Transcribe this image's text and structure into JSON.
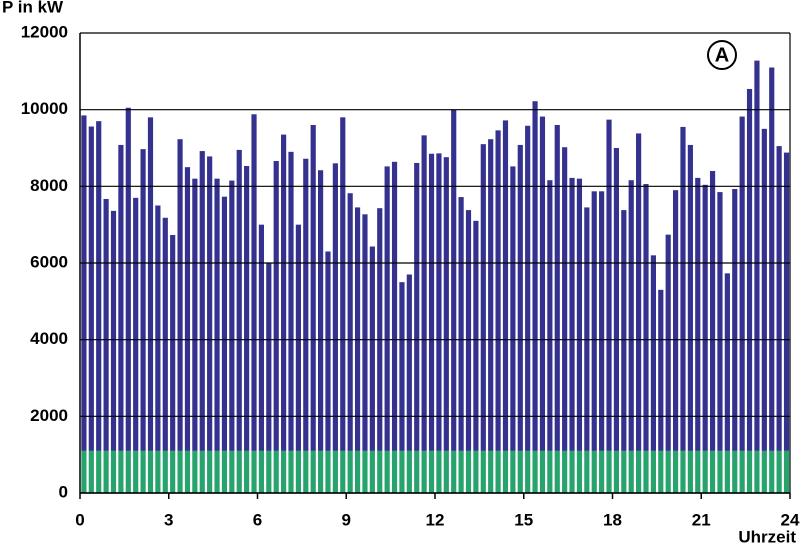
{
  "chart_data": {
    "type": "bar",
    "stacked": true,
    "grid": true,
    "y_label": "P in kW",
    "x_label": "Uhrzeit",
    "annotation": "A",
    "x": [
      0,
      0.25,
      0.5,
      0.75,
      1,
      1.25,
      1.5,
      1.75,
      2,
      2.25,
      2.5,
      2.75,
      3,
      3.25,
      3.5,
      3.75,
      4,
      4.25,
      4.5,
      4.75,
      5,
      5.25,
      5.5,
      5.75,
      6,
      6.25,
      6.5,
      6.75,
      7,
      7.25,
      7.5,
      7.75,
      8,
      8.25,
      8.5,
      8.75,
      9,
      9.25,
      9.5,
      9.75,
      10,
      10.25,
      10.5,
      10.75,
      11,
      11.25,
      11.5,
      11.75,
      12,
      12.25,
      12.5,
      12.75,
      13,
      13.25,
      13.5,
      13.75,
      14,
      14.25,
      14.5,
      14.75,
      15,
      15.25,
      15.5,
      15.75,
      16,
      16.25,
      16.5,
      16.75,
      17,
      17.25,
      17.5,
      17.75,
      18,
      18.25,
      18.5,
      18.75,
      19,
      19.25,
      19.5,
      19.75,
      20,
      20.25,
      20.5,
      20.75,
      21,
      21.25,
      21.5,
      21.75,
      22,
      22.25,
      22.5,
      22.75,
      23,
      23.25,
      23.5,
      23.75
    ],
    "series": [
      {
        "color": "#27a36c",
        "values": [
          1100,
          1100,
          1100,
          1100,
          1100,
          1100,
          1100,
          1100,
          1100,
          1100,
          1100,
          1100,
          1100,
          1100,
          1100,
          1100,
          1100,
          1100,
          1100,
          1100,
          1100,
          1100,
          1100,
          1100,
          1100,
          1100,
          1100,
          1100,
          1100,
          1100,
          1100,
          1100,
          1100,
          1100,
          1100,
          1100,
          1100,
          1100,
          1100,
          1100,
          1100,
          1100,
          1100,
          1100,
          1100,
          1100,
          1100,
          1100,
          1100,
          1100,
          1100,
          1100,
          1100,
          1100,
          1100,
          1100,
          1100,
          1100,
          1100,
          1100,
          1100,
          1100,
          1100,
          1100,
          1100,
          1100,
          1100,
          1100,
          1100,
          1100,
          1100,
          1100,
          1100,
          1100,
          1100,
          1100,
          1100,
          1100,
          1100,
          1100,
          1100,
          1100,
          1100,
          1100,
          1100,
          1100,
          1100,
          1100,
          1100,
          1100,
          1100,
          1100,
          1100,
          1100,
          1100,
          1100
        ]
      },
      {
        "color": "#35318e",
        "values": [
          8750,
          8460,
          8600,
          6570,
          6260,
          7980,
          8950,
          6600,
          7870,
          8700,
          6400,
          6080,
          5630,
          8130,
          7400,
          7100,
          7820,
          7680,
          7100,
          6630,
          7050,
          7850,
          7430,
          8780,
          5900,
          4900,
          7560,
          8250,
          7800,
          5900,
          7620,
          8500,
          7320,
          5200,
          7500,
          8700,
          6720,
          6350,
          6170,
          5330,
          6330,
          7420,
          7540,
          4400,
          4600,
          7510,
          8230,
          7750,
          7760,
          7660,
          8900,
          6620,
          6280,
          6000,
          8000,
          8130,
          8360,
          8620,
          7420,
          7980,
          8480,
          9120,
          8720,
          7060,
          8500,
          7920,
          7120,
          7100,
          6350,
          6770,
          6770,
          8640,
          7900,
          6280,
          7060,
          8280,
          6960,
          5100,
          4200,
          5640,
          6800,
          8450,
          7980,
          7120,
          6940,
          7300,
          6750,
          4630,
          6830,
          8720,
          9440,
          10180,
          8400,
          10000,
          7950,
          7780
        ]
      }
    ],
    "xlim": [
      0,
      24
    ],
    "xticks": [
      0,
      3,
      6,
      9,
      12,
      15,
      18,
      21,
      24
    ],
    "ylim": [
      0,
      12000
    ],
    "yticks": [
      0,
      2000,
      4000,
      6000,
      8000,
      10000,
      12000
    ]
  }
}
